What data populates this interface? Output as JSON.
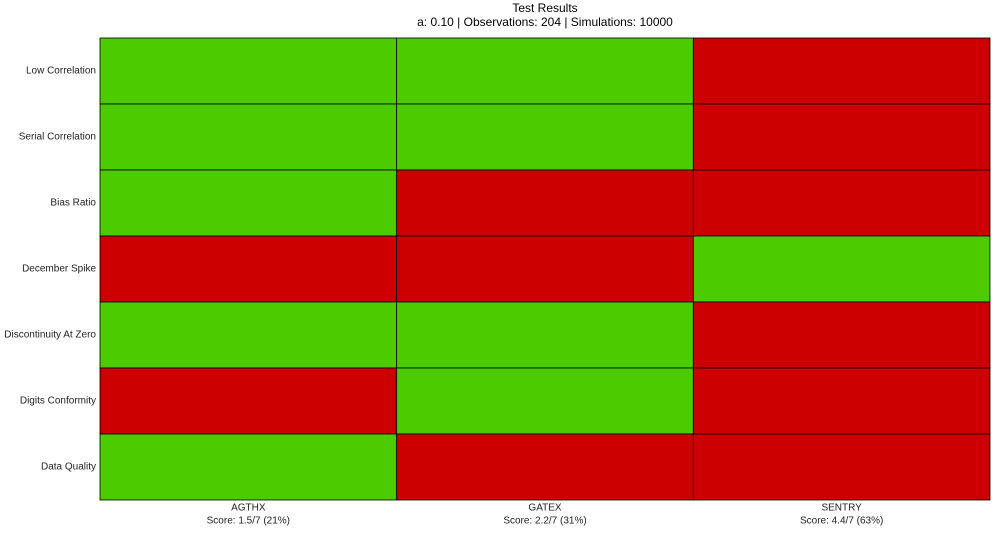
{
  "chart_data": {
    "type": "heatmap",
    "title": "Test Results",
    "subtitle": "a: 0.10 | Observations: 204 | Simulations: 10000",
    "rows": [
      "Low Correlation",
      "Serial Correlation",
      "Bias Ratio",
      "December Spike",
      "Discontinuity At Zero",
      "Digits Conformity",
      "Data Quality"
    ],
    "categories": [
      "AGTHX",
      "GATEX",
      "SENTRY"
    ],
    "scores": [
      "Score: 1.5/7 (21%)",
      "Score: 2.2/7 (31%)",
      "Score: 4.4/7 (63%)"
    ],
    "values": [
      [
        1,
        1,
        0
      ],
      [
        1,
        1,
        0
      ],
      [
        1,
        0,
        0
      ],
      [
        0,
        0,
        1
      ],
      [
        1,
        1,
        0
      ],
      [
        0,
        1,
        0
      ],
      [
        1,
        0,
        0
      ]
    ],
    "colors": [
      "#cc0000",
      "#4ccc00"
    ]
  }
}
